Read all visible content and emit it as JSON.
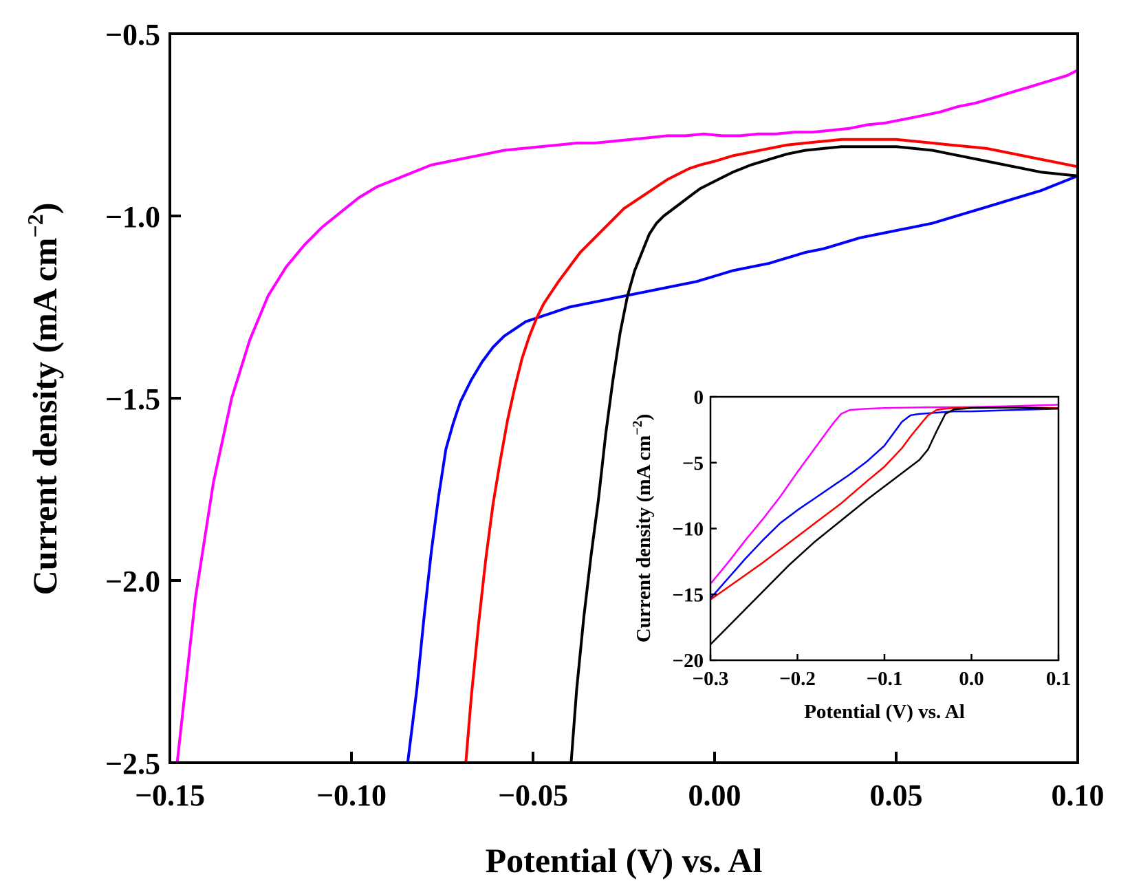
{
  "chart_data": [
    {
      "id": "main",
      "type": "line",
      "title": "",
      "xlabel": "Potential (V) vs. Al",
      "ylabel_main": "Current density (mA cm",
      "ylabel_sup": "−2",
      "ylabel_close": ")",
      "xlim": [
        -0.15,
        0.1
      ],
      "ylim": [
        -2.5,
        -0.5
      ],
      "xticks": [
        -0.15,
        -0.1,
        -0.05,
        0.0,
        0.05,
        0.1
      ],
      "xtick_labels": [
        "−0.15",
        "−0.10",
        "−0.05",
        "0.00",
        "0.05",
        "0.10"
      ],
      "yticks": [
        -0.5,
        -1.0,
        -1.5,
        -2.0,
        -2.5
      ],
      "ytick_labels": [
        "−0.5",
        "−1.0",
        "−1.5",
        "−2.0",
        "−2.5"
      ],
      "grid": false,
      "series": [
        {
          "name": "magenta",
          "color": "#ff00ff",
          "x": [
            -0.148,
            -0.143,
            -0.138,
            -0.133,
            -0.128,
            -0.123,
            -0.118,
            -0.113,
            -0.108,
            -0.103,
            -0.098,
            -0.093,
            -0.088,
            -0.083,
            -0.078,
            -0.073,
            -0.068,
            -0.063,
            -0.058,
            -0.053,
            -0.048,
            -0.043,
            -0.038,
            -0.033,
            -0.028,
            -0.023,
            -0.018,
            -0.013,
            -0.008,
            -0.003,
            0.002,
            0.007,
            0.012,
            0.017,
            0.022,
            0.027,
            0.032,
            0.037,
            0.042,
            0.047,
            0.052,
            0.057,
            0.062,
            0.067,
            0.072,
            0.077,
            0.082,
            0.087,
            0.092,
            0.097,
            0.1
          ],
          "y": [
            -2.5,
            -2.05,
            -1.73,
            -1.5,
            -1.34,
            -1.22,
            -1.14,
            -1.08,
            -1.03,
            -0.99,
            -0.95,
            -0.92,
            -0.9,
            -0.88,
            -0.86,
            -0.85,
            -0.84,
            -0.83,
            -0.82,
            -0.815,
            -0.81,
            -0.805,
            -0.8,
            -0.8,
            -0.795,
            -0.79,
            -0.785,
            -0.78,
            -0.78,
            -0.775,
            -0.78,
            -0.78,
            -0.775,
            -0.775,
            -0.77,
            -0.77,
            -0.765,
            -0.76,
            -0.75,
            -0.745,
            -0.735,
            -0.725,
            -0.715,
            -0.7,
            -0.69,
            -0.675,
            -0.66,
            -0.645,
            -0.63,
            -0.615,
            -0.6
          ]
        },
        {
          "name": "blue",
          "color": "#0000ff",
          "x": [
            -0.0845,
            -0.082,
            -0.08,
            -0.078,
            -0.076,
            -0.074,
            -0.072,
            -0.07,
            -0.067,
            -0.064,
            -0.061,
            -0.058,
            -0.055,
            -0.052,
            -0.049,
            -0.046,
            -0.043,
            -0.04,
            -0.035,
            -0.03,
            -0.025,
            -0.02,
            -0.015,
            -0.01,
            -0.005,
            0.0,
            0.005,
            0.01,
            0.015,
            0.02,
            0.025,
            0.03,
            0.035,
            0.04,
            0.045,
            0.05,
            0.055,
            0.06,
            0.065,
            0.07,
            0.075,
            0.08,
            0.085,
            0.09,
            0.095,
            0.1
          ],
          "y": [
            -2.5,
            -2.3,
            -2.1,
            -1.92,
            -1.77,
            -1.64,
            -1.57,
            -1.51,
            -1.45,
            -1.4,
            -1.36,
            -1.33,
            -1.31,
            -1.29,
            -1.28,
            -1.27,
            -1.26,
            -1.25,
            -1.24,
            -1.23,
            -1.22,
            -1.21,
            -1.2,
            -1.19,
            -1.18,
            -1.165,
            -1.15,
            -1.14,
            -1.13,
            -1.115,
            -1.1,
            -1.09,
            -1.075,
            -1.06,
            -1.05,
            -1.04,
            -1.03,
            -1.02,
            -1.005,
            -0.99,
            -0.975,
            -0.96,
            -0.945,
            -0.93,
            -0.91,
            -0.89
          ]
        },
        {
          "name": "red",
          "color": "#ff0000",
          "x": [
            -0.0685,
            -0.067,
            -0.065,
            -0.063,
            -0.061,
            -0.059,
            -0.057,
            -0.055,
            -0.053,
            -0.051,
            -0.049,
            -0.047,
            -0.045,
            -0.043,
            -0.04,
            -0.037,
            -0.034,
            -0.031,
            -0.028,
            -0.025,
            -0.022,
            -0.019,
            -0.016,
            -0.013,
            -0.01,
            -0.007,
            -0.004,
            0.0,
            0.005,
            0.01,
            0.015,
            0.02,
            0.025,
            0.03,
            0.035,
            0.04,
            0.045,
            0.05,
            0.055,
            0.06,
            0.065,
            0.07,
            0.075,
            0.08,
            0.085,
            0.09,
            0.095,
            0.1
          ],
          "y": [
            -2.5,
            -2.32,
            -2.12,
            -1.94,
            -1.79,
            -1.67,
            -1.56,
            -1.47,
            -1.39,
            -1.33,
            -1.28,
            -1.24,
            -1.21,
            -1.18,
            -1.14,
            -1.1,
            -1.07,
            -1.04,
            -1.01,
            -0.98,
            -0.96,
            -0.94,
            -0.92,
            -0.9,
            -0.885,
            -0.87,
            -0.86,
            -0.85,
            -0.835,
            -0.825,
            -0.815,
            -0.805,
            -0.8,
            -0.795,
            -0.79,
            -0.79,
            -0.79,
            -0.79,
            -0.795,
            -0.8,
            -0.805,
            -0.81,
            -0.815,
            -0.825,
            -0.835,
            -0.845,
            -0.855,
            -0.865
          ]
        },
        {
          "name": "black",
          "color": "#000000",
          "x": [
            -0.0395,
            -0.038,
            -0.036,
            -0.034,
            -0.032,
            -0.03,
            -0.028,
            -0.026,
            -0.024,
            -0.022,
            -0.02,
            -0.018,
            -0.016,
            -0.014,
            -0.012,
            -0.01,
            -0.008,
            -0.006,
            -0.004,
            -0.002,
            0.0,
            0.005,
            0.01,
            0.015,
            0.02,
            0.025,
            0.03,
            0.035,
            0.04,
            0.045,
            0.05,
            0.055,
            0.06,
            0.065,
            0.07,
            0.075,
            0.08,
            0.085,
            0.09,
            0.095,
            0.1
          ],
          "y": [
            -2.5,
            -2.3,
            -2.1,
            -1.93,
            -1.78,
            -1.6,
            -1.45,
            -1.32,
            -1.22,
            -1.15,
            -1.1,
            -1.05,
            -1.02,
            -1.0,
            -0.985,
            -0.97,
            -0.955,
            -0.94,
            -0.925,
            -0.915,
            -0.905,
            -0.88,
            -0.86,
            -0.845,
            -0.83,
            -0.82,
            -0.815,
            -0.81,
            -0.81,
            -0.81,
            -0.81,
            -0.815,
            -0.82,
            -0.83,
            -0.84,
            -0.85,
            -0.86,
            -0.87,
            -0.88,
            -0.885,
            -0.89
          ]
        }
      ]
    },
    {
      "id": "inset",
      "type": "line",
      "title": "",
      "xlabel": "Potential (V) vs. Al",
      "ylabel_main": "Current density (mA cm",
      "ylabel_sup": "−2",
      "ylabel_close": ")",
      "xlim": [
        -0.3,
        0.1
      ],
      "ylim": [
        -20,
        0
      ],
      "xticks": [
        -0.3,
        -0.2,
        -0.1,
        0.0,
        0.1
      ],
      "xtick_labels": [
        "−0.3",
        "−0.2",
        "−0.1",
        "0.0",
        "0.1"
      ],
      "yticks": [
        0,
        -5,
        -10,
        -15,
        -20
      ],
      "ytick_labels": [
        "0",
        "−5",
        "−10",
        "−15",
        "−20"
      ],
      "grid": false,
      "series": [
        {
          "name": "magenta",
          "color": "#ff00ff",
          "x": [
            -0.3,
            -0.28,
            -0.26,
            -0.24,
            -0.22,
            -0.2,
            -0.18,
            -0.16,
            -0.15,
            -0.14,
            -0.12,
            -0.1,
            -0.05,
            0.0,
            0.05,
            0.1
          ],
          "y": [
            -14.2,
            -12.6,
            -10.9,
            -9.3,
            -7.6,
            -5.7,
            -3.9,
            -2.1,
            -1.3,
            -1.0,
            -0.9,
            -0.85,
            -0.8,
            -0.78,
            -0.7,
            -0.6
          ]
        },
        {
          "name": "blue",
          "color": "#0000ff",
          "x": [
            -0.3,
            -0.28,
            -0.26,
            -0.24,
            -0.22,
            -0.2,
            -0.18,
            -0.16,
            -0.14,
            -0.12,
            -0.1,
            -0.09,
            -0.08,
            -0.07,
            -0.06,
            -0.04,
            -0.02,
            0.0,
            0.05,
            0.1
          ],
          "y": [
            -15.3,
            -13.8,
            -12.3,
            -10.9,
            -9.6,
            -8.6,
            -7.7,
            -6.8,
            -5.9,
            -4.9,
            -3.7,
            -2.8,
            -1.9,
            -1.4,
            -1.3,
            -1.2,
            -1.1,
            -1.1,
            -1.0,
            -0.9
          ]
        },
        {
          "name": "red",
          "color": "#ff0000",
          "x": [
            -0.3,
            -0.27,
            -0.24,
            -0.21,
            -0.18,
            -0.15,
            -0.12,
            -0.1,
            -0.08,
            -0.07,
            -0.06,
            -0.05,
            -0.04,
            -0.03,
            -0.02,
            0.0,
            0.05,
            0.1
          ],
          "y": [
            -15.4,
            -14.0,
            -12.6,
            -11.1,
            -9.6,
            -8.1,
            -6.4,
            -5.3,
            -3.9,
            -3.0,
            -2.2,
            -1.4,
            -1.0,
            -0.9,
            -0.85,
            -0.82,
            -0.8,
            -0.85
          ]
        },
        {
          "name": "black",
          "color": "#000000",
          "x": [
            -0.3,
            -0.27,
            -0.24,
            -0.21,
            -0.18,
            -0.15,
            -0.12,
            -0.09,
            -0.06,
            -0.05,
            -0.04,
            -0.03,
            -0.02,
            0.0,
            0.05,
            0.1
          ],
          "y": [
            -18.8,
            -16.8,
            -14.8,
            -12.8,
            -11.0,
            -9.4,
            -7.8,
            -6.3,
            -4.8,
            -4.0,
            -2.6,
            -1.3,
            -0.95,
            -0.85,
            -0.82,
            -0.9
          ]
        }
      ]
    }
  ]
}
